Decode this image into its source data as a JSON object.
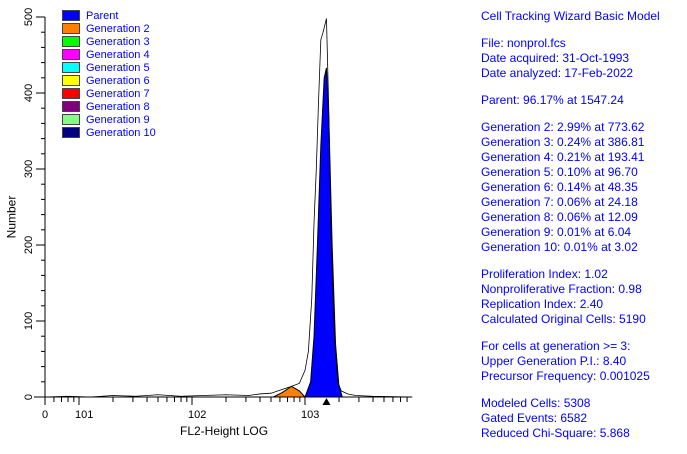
{
  "legend": [
    {
      "label": "Parent",
      "color": "#0000ff"
    },
    {
      "label": "Generation 2",
      "color": "#ff8000"
    },
    {
      "label": "Generation 3",
      "color": "#00ff00"
    },
    {
      "label": "Generation 4",
      "color": "#ff00ff"
    },
    {
      "label": "Generation 5",
      "color": "#00ffff"
    },
    {
      "label": "Generation 6",
      "color": "#ffff00"
    },
    {
      "label": "Generation 7",
      "color": "#ff0000"
    },
    {
      "label": "Generation 8",
      "color": "#800080"
    },
    {
      "label": "Generation 9",
      "color": "#80ff80"
    },
    {
      "label": "Generation 10",
      "color": "#000080"
    }
  ],
  "report": {
    "title": "Cell Tracking Wizard Basic Model",
    "file": "File: nonprol.fcs",
    "acquired": "Date acquired: 31-Oct-1993",
    "analyzed": "Date analyzed: 17-Feb-2022",
    "parent": "Parent: 96.17% at 1547.24",
    "generations": [
      "Generation 2: 2.99% at 773.62",
      "Generation 3: 0.24% at 386.81",
      "Generation 4: 0.21% at 193.41",
      "Generation 5: 0.10% at 96.70",
      "Generation 6: 0.14% at 48.35",
      "Generation 7: 0.06% at 24.18",
      "Generation 8: 0.06% at 12.09",
      "Generation 9: 0.01% at 6.04",
      "Generation 10: 0.01% at 3.02"
    ],
    "indices": [
      "Proliferation Index: 1.02",
      "Nonproliferative Fraction: 0.98",
      "Replication Index: 2.40",
      "Calculated Original Cells: 5190"
    ],
    "gen3": [
      "For cells at generation >= 3:",
      "Upper Generation P.I.: 8.40",
      "Precursor Frequency: 0.001025"
    ],
    "fit": [
      "Modeled Cells: 5308",
      "Gated Events: 6582",
      "Reduced Chi-Square: 5.868"
    ]
  },
  "chart_data": {
    "type": "area",
    "xlabel": "FL2-Height LOG",
    "ylabel": "Number",
    "xscale": "log",
    "xlim_log10": [
      0.7,
      3.95
    ],
    "ylim": [
      0,
      500
    ],
    "yticks": [
      0,
      100,
      200,
      300,
      400,
      500
    ],
    "xticks": [
      {
        "label": "0",
        "v": 0.7
      },
      {
        "label": "101",
        "v": 1
      },
      {
        "label": "102",
        "v": 2
      },
      {
        "label": "103",
        "v": 3
      }
    ],
    "marker_log10": 3.19,
    "raw": [
      [
        0.7,
        0
      ],
      [
        0.9,
        1
      ],
      [
        1.1,
        0
      ],
      [
        1.3,
        2
      ],
      [
        1.5,
        1
      ],
      [
        1.7,
        3
      ],
      [
        1.9,
        1
      ],
      [
        2.1,
        2
      ],
      [
        2.3,
        3
      ],
      [
        2.5,
        2
      ],
      [
        2.6,
        4
      ],
      [
        2.7,
        5
      ],
      [
        2.8,
        10
      ],
      [
        2.88,
        14
      ],
      [
        2.95,
        18
      ],
      [
        3.0,
        35
      ],
      [
        3.03,
        60
      ],
      [
        3.06,
        130
      ],
      [
        3.08,
        230
      ],
      [
        3.1,
        300
      ],
      [
        3.12,
        390
      ],
      [
        3.14,
        470
      ],
      [
        3.16,
        480
      ],
      [
        3.19,
        498
      ],
      [
        3.21,
        380
      ],
      [
        3.23,
        220
      ],
      [
        3.26,
        80
      ],
      [
        3.29,
        20
      ],
      [
        3.32,
        8
      ],
      [
        3.38,
        4
      ],
      [
        3.45,
        2
      ],
      [
        3.6,
        1
      ],
      [
        3.95,
        0
      ]
    ],
    "series": [
      {
        "name": "Parent",
        "color": "#0000ff",
        "points": [
          [
            3.0,
            0
          ],
          [
            3.05,
            20
          ],
          [
            3.08,
            80
          ],
          [
            3.11,
            200
          ],
          [
            3.14,
            330
          ],
          [
            3.17,
            420
          ],
          [
            3.19,
            433
          ],
          [
            3.21,
            370
          ],
          [
            3.24,
            200
          ],
          [
            3.27,
            70
          ],
          [
            3.3,
            15
          ],
          [
            3.33,
            0
          ]
        ]
      },
      {
        "name": "Generation 2",
        "color": "#ff8000",
        "points": [
          [
            2.72,
            0
          ],
          [
            2.8,
            6
          ],
          [
            2.88,
            14
          ],
          [
            2.95,
            8
          ],
          [
            3.0,
            0
          ]
        ]
      }
    ]
  }
}
